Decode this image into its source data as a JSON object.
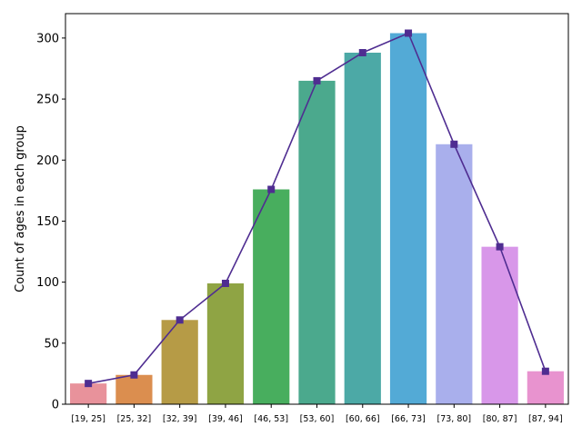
{
  "chart_data": {
    "type": "bar",
    "title": "",
    "xlabel": "",
    "ylabel": "Count of ages in each group",
    "categories": [
      "[19, 25]",
      "[25, 32]",
      "[32, 39]",
      "[39, 46]",
      "[46, 53]",
      "[53, 60]",
      "[60, 66]",
      "[66, 73]",
      "[73, 80]",
      "[80, 87]",
      "[87, 94]"
    ],
    "values": [
      17,
      24,
      69,
      99,
      176,
      265,
      288,
      304,
      213,
      129,
      27
    ],
    "bar_colors": [
      "#e8929b",
      "#db8e4f",
      "#b69b46",
      "#8fa444",
      "#48ae5e",
      "#4ba98d",
      "#4ca9a6",
      "#53aad6",
      "#a9afec",
      "#d897e9",
      "#e893cf"
    ],
    "line_series": {
      "values": [
        17,
        24,
        69,
        99,
        176,
        265,
        288,
        304,
        213,
        129,
        27
      ],
      "color": "#4f2d91",
      "marker": "square"
    },
    "ylim": [
      0,
      320
    ],
    "yticks": [
      0,
      50,
      100,
      150,
      200,
      250,
      300
    ],
    "grid": false,
    "legend": "none"
  }
}
